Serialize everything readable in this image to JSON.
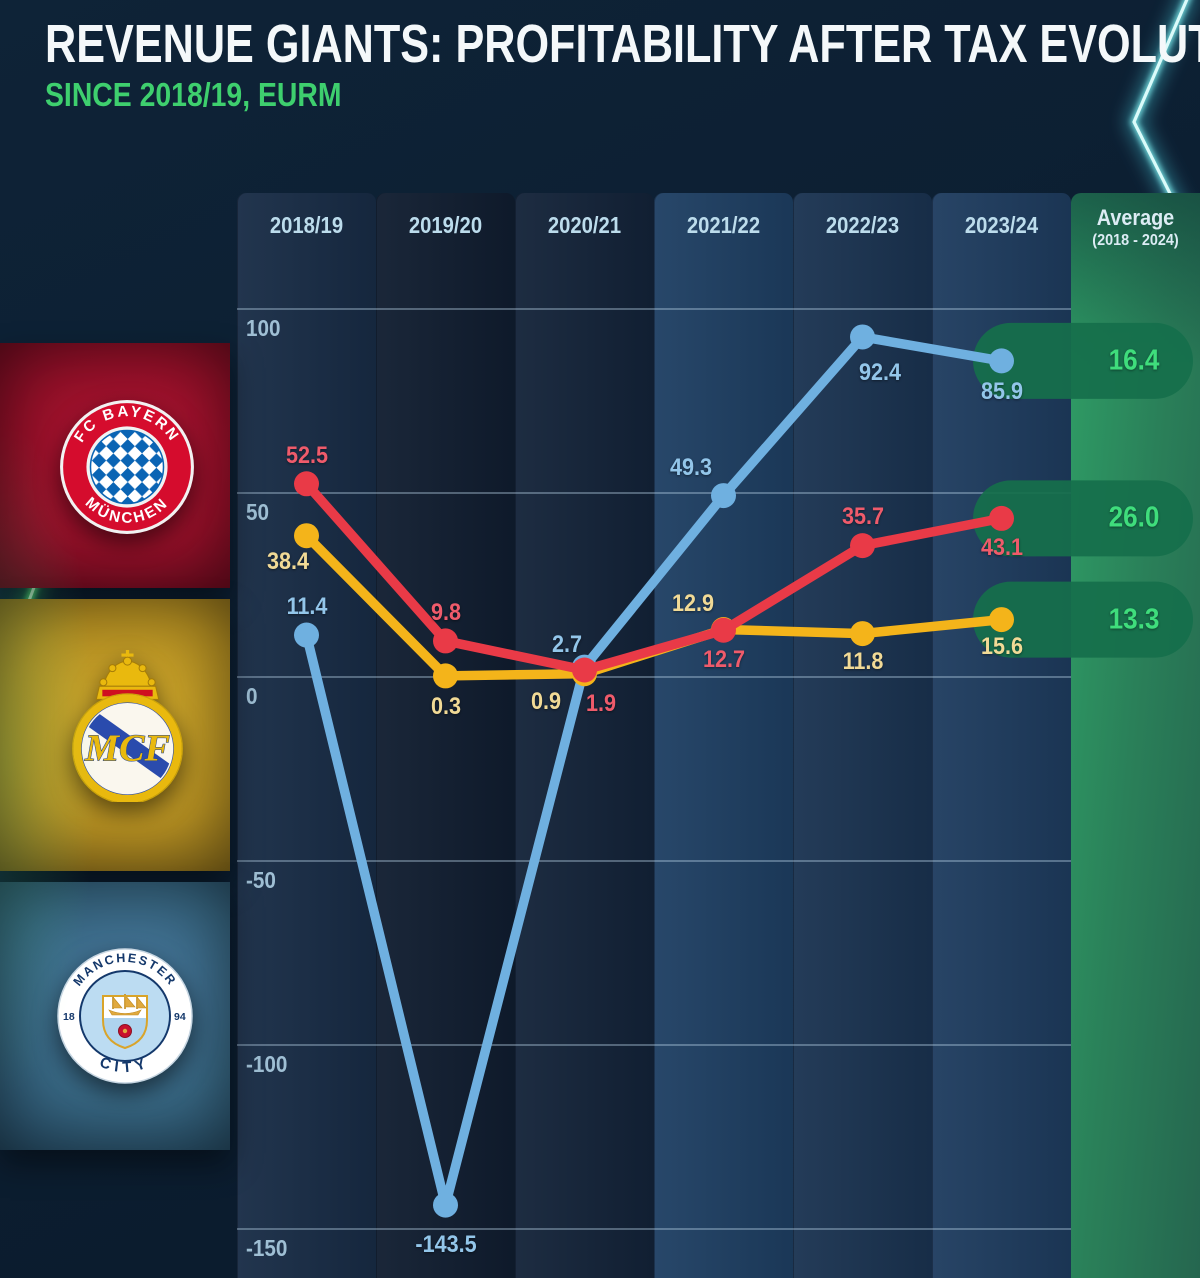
{
  "title": "REVENUE GIANTS: PROFITABILITY AFTER TAX EVOLUTION",
  "subtitle": "SINCE 2018/19, EURM",
  "accent_colors": {
    "subtitle_green": "#3ecf6e",
    "average_green": "#3fdd7c",
    "neon_left_green": "#57e07e",
    "neon_right_cyan": "#7de8ea",
    "pill_green": "#156f4b"
  },
  "sidebar": {
    "clubs": [
      {
        "name": "FC Bayern München",
        "icon": "bayern-munich-crest",
        "panel_color": "#971029",
        "crest": {
          "top_text": "FC BAYERN",
          "bottom_text": "MÜNCHEN"
        }
      },
      {
        "name": "Real Madrid",
        "icon": "real-madrid-crest",
        "panel_color": "#b69022",
        "crest": {
          "monogram": "MCF"
        }
      },
      {
        "name": "Manchester City",
        "icon": "manchester-city-crest",
        "panel_color": "#386884",
        "crest": {
          "top_text": "MANCHESTER",
          "bottom_text": "CITY",
          "year_left": "18",
          "year_right": "94"
        }
      }
    ]
  },
  "chart_data": {
    "type": "line",
    "categories": [
      "2018/19",
      "2019/20",
      "2020/21",
      "2021/22",
      "2022/23",
      "2023/24"
    ],
    "average_column": {
      "label": "Average",
      "sublabel": "(2018 - 2024)"
    },
    "y_ticks": [
      100,
      50,
      0,
      -50,
      -100,
      -150
    ],
    "ylim": [
      -160,
      115
    ],
    "grid": "horizontal",
    "legend_position": "left-sidebar-logos",
    "series": [
      {
        "name": "Manchester City",
        "slug": "manchester-city",
        "color": "#6fb0e0",
        "label_color": "#93c6ea",
        "values": [
          11.4,
          -143.5,
          2.7,
          49.3,
          92.4,
          85.9
        ],
        "average": "16.4"
      },
      {
        "name": "Real Madrid",
        "slug": "real-madrid",
        "color": "#f4b41a",
        "label_color": "#f1da96",
        "values": [
          38.4,
          0.3,
          0.9,
          12.9,
          11.8,
          15.6
        ],
        "average": "13.3"
      },
      {
        "name": "FC Bayern München",
        "slug": "bayern-munich",
        "color": "#e93a47",
        "label_color": "#ef5b6b",
        "values": [
          52.5,
          9.8,
          1.9,
          12.7,
          35.7,
          43.1
        ],
        "average": "26.0"
      }
    ]
  }
}
